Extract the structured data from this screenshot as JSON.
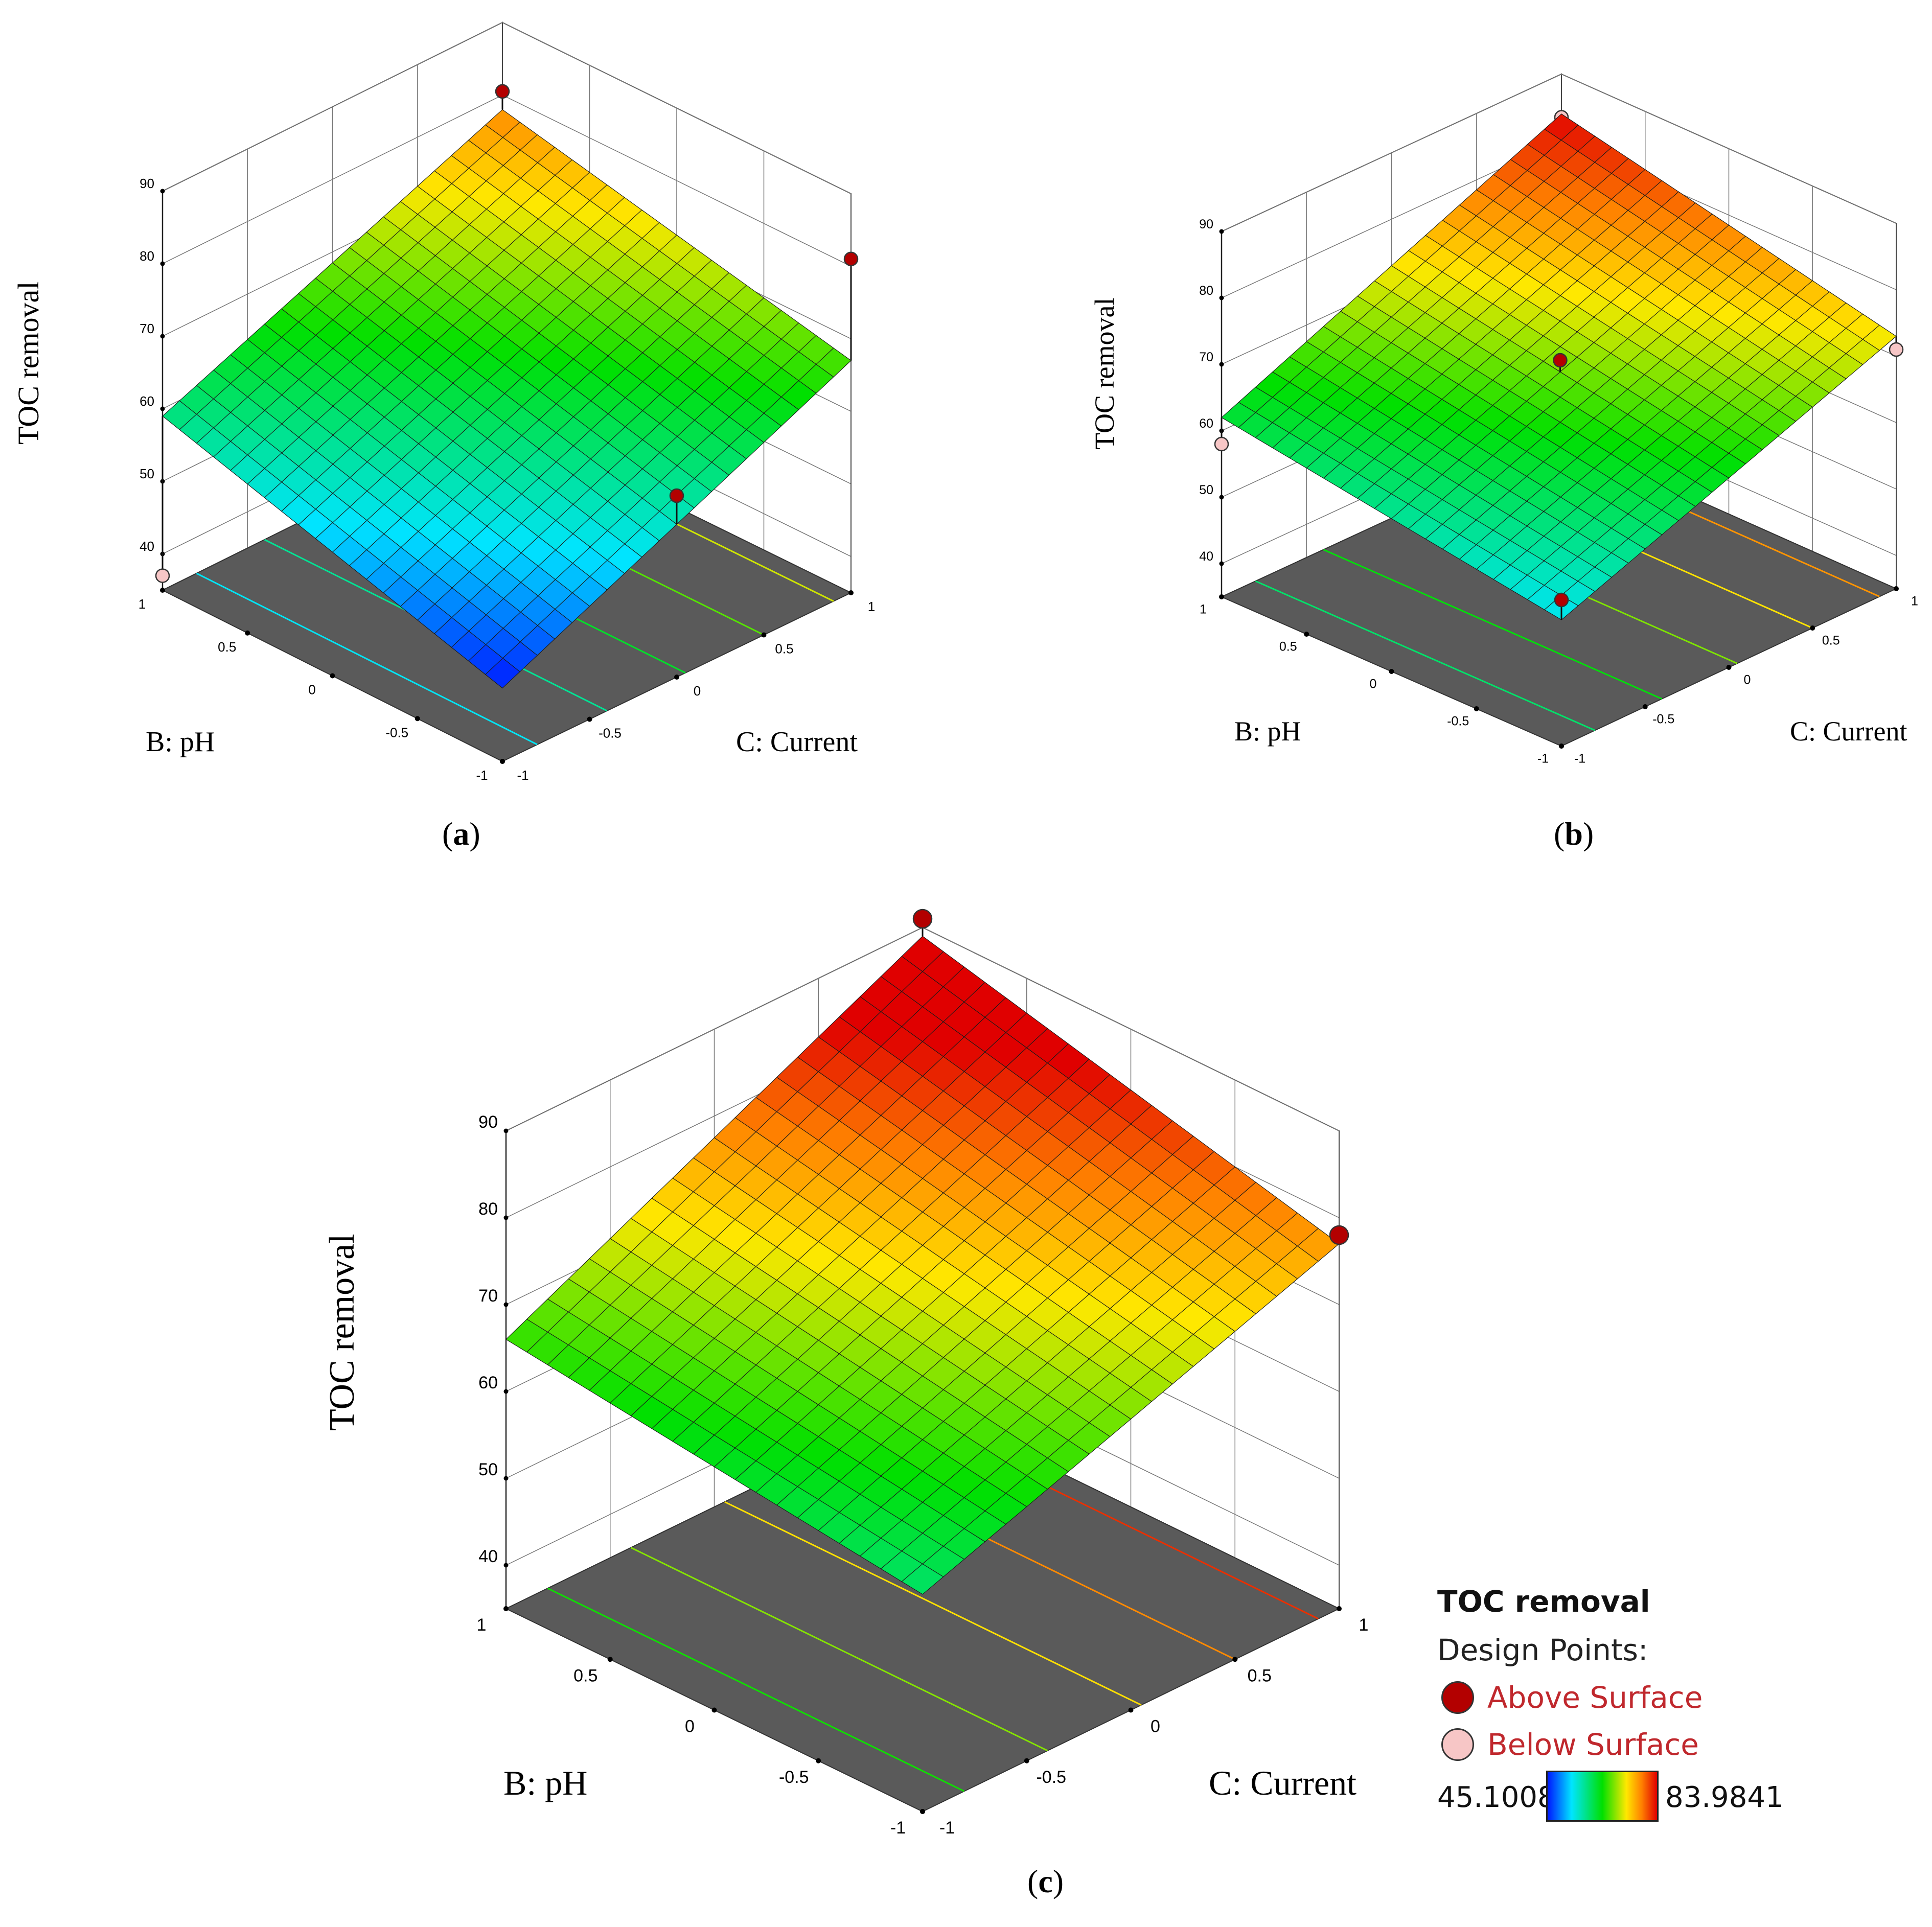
{
  "figure": {
    "legend": {
      "title": "TOC removal",
      "design_points_label": "Design Points:",
      "above_label": "Above Surface",
      "below_label": "Below Surface",
      "range_min": "45.1008",
      "range_max": "83.9841",
      "colors": {
        "above": "#b30000",
        "below": "#f7c6c6",
        "ramp": [
          "#0018ff",
          "#00e5ff",
          "#00e000",
          "#ffe800",
          "#ff8000",
          "#e00000"
        ]
      }
    }
  },
  "chart_data": [
    {
      "type": "surface",
      "panel_label": "a",
      "zlabel": "TOC removal",
      "xlabel": "B: pH",
      "ylabel": "C: Current",
      "x_ticks": [
        "-1",
        "-0.5",
        "0",
        "0.5",
        "1"
      ],
      "y_ticks": [
        "-1",
        "-0.5",
        "0",
        "0.5",
        "1"
      ],
      "z_ticks": [
        "40",
        "50",
        "60",
        "70",
        "80",
        "90"
      ],
      "zlim": [
        35,
        90
      ],
      "surface_corners": {
        "B=-1,C=-1": 45.1,
        "B=1,C=-1": 59.0,
        "B=-1,C=1": 67.0,
        "B=1,C=1": 78.0
      },
      "design_points": [
        {
          "B": 1,
          "C": 1,
          "value": 80.5,
          "position": "above"
        },
        {
          "B": -1,
          "C": 1,
          "value": 81.0,
          "position": "above"
        },
        {
          "B": -1,
          "C": 0,
          "value": 60.0,
          "position": "above"
        },
        {
          "B": 1,
          "C": -1,
          "value": 37.0,
          "position": "below"
        }
      ]
    },
    {
      "type": "surface",
      "panel_label": "b",
      "zlabel": "TOC removal",
      "xlabel": "B: pH",
      "ylabel": "C: Current",
      "x_ticks": [
        "-1",
        "-0.5",
        "0",
        "0.5",
        "1"
      ],
      "y_ticks": [
        "-1",
        "-0.5",
        "0",
        "0.5",
        "1"
      ],
      "z_ticks": [
        "40",
        "50",
        "60",
        "70",
        "80",
        "90"
      ],
      "zlim": [
        35,
        90
      ],
      "surface_corners": {
        "B=-1,C=-1": 54.0,
        "B=1,C=-1": 62.0,
        "B=-1,C=1": 73.0,
        "B=1,C=1": 84.0
      },
      "design_points": [
        {
          "B": 0,
          "C": 0,
          "value": 70.0,
          "position": "above"
        },
        {
          "B": -1,
          "C": -1,
          "value": 57.0,
          "position": "above"
        },
        {
          "B": 1,
          "C": 1,
          "value": 83.5,
          "position": "below"
        },
        {
          "B": 1,
          "C": -1,
          "value": 58.0,
          "position": "below"
        },
        {
          "B": -1,
          "C": 1,
          "value": 71.0,
          "position": "below"
        }
      ]
    },
    {
      "type": "surface",
      "panel_label": "c",
      "zlabel": "TOC removal",
      "xlabel": "B: pH",
      "ylabel": "C: Current",
      "x_ticks": [
        "-1",
        "-0.5",
        "0",
        "0.5",
        "1"
      ],
      "y_ticks": [
        "-1",
        "-0.5",
        "0",
        "0.5",
        "1"
      ],
      "z_ticks": [
        "40",
        "50",
        "60",
        "70",
        "80",
        "90"
      ],
      "zlim": [
        35,
        90
      ],
      "surface_corners": {
        "B=-1,C=-1": 60.0,
        "B=1,C=-1": 66.0,
        "B=-1,C=1": 77.0,
        "B=1,C=1": 89.0
      },
      "design_points": [
        {
          "B": 1,
          "C": 1,
          "value": 91.0,
          "position": "above"
        },
        {
          "B": -1,
          "C": 1,
          "value": 78.0,
          "position": "above"
        },
        {
          "B": 1,
          "C": -0.5,
          "value": 69.0,
          "position": "below"
        }
      ]
    }
  ]
}
